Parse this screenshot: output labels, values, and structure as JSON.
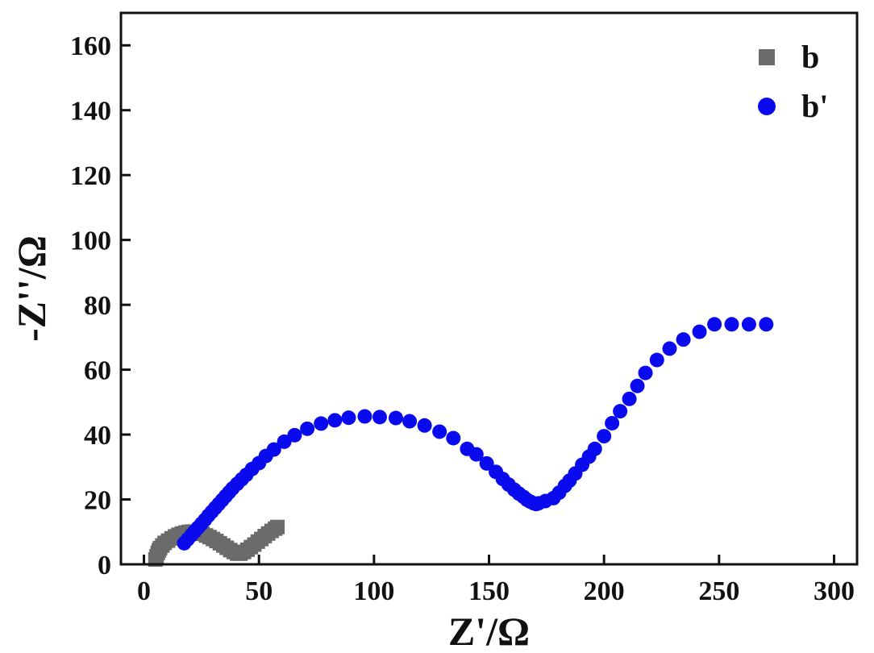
{
  "chart_data": {
    "type": "scatter",
    "xlabel": "Z'/Ω",
    "ylabel": "-Z''/Ω",
    "xlim": [
      -10,
      310
    ],
    "ylim": [
      0,
      170
    ],
    "xticks": [
      0,
      50,
      100,
      150,
      200,
      250,
      300
    ],
    "yticks": [
      0,
      20,
      40,
      60,
      80,
      100,
      120,
      140,
      160
    ],
    "grid": false,
    "legend_position": "top-right",
    "series": [
      {
        "name": "b",
        "marker": "square",
        "color": "#6b6b6b",
        "x": [
          5.0,
          5.5,
          6.0,
          6.5,
          7.0,
          8.0,
          9.0,
          10.5,
          12.0,
          13.5,
          15.0,
          16.5,
          18.0,
          19.5,
          21.0,
          22.5,
          24.0,
          25.5,
          27.0,
          28.5,
          30.0,
          31.5,
          33.0,
          34.5,
          36.0,
          37.5,
          39.0,
          40.5,
          42.0,
          43.5,
          45.0,
          46.5,
          48.0,
          49.5,
          51.0,
          52.5,
          54.0,
          55.5,
          57.0,
          58.0
        ],
        "y": [
          1.5,
          2.5,
          3.5,
          4.3,
          5.0,
          5.8,
          6.6,
          7.3,
          8.0,
          8.6,
          9.1,
          9.5,
          9.8,
          10.0,
          10.1,
          10.0,
          9.8,
          9.4,
          8.9,
          8.4,
          7.8,
          7.2,
          6.5,
          5.8,
          5.1,
          4.4,
          3.8,
          3.3,
          3.3,
          3.8,
          4.5,
          5.3,
          6.1,
          7.0,
          7.8,
          8.7,
          9.5,
          10.3,
          11.0,
          11.5
        ]
      },
      {
        "name": "b'",
        "marker": "circle",
        "color": "#0a0aee",
        "x": [
          17.5,
          19.0,
          20.5,
          22.0,
          23.5,
          25.0,
          26.5,
          28.0,
          29.5,
          31.0,
          32.5,
          34.0,
          35.5,
          37.0,
          38.5,
          40.5,
          42.5,
          44.5,
          47.0,
          50.0,
          53.0,
          56.5,
          61.0,
          65.5,
          71.0,
          77.0,
          83.0,
          89.0,
          96.0,
          102.5,
          109.5,
          115.5,
          122.0,
          128.5,
          134.5,
          140.5,
          144.5,
          149.0,
          153.0,
          156.0,
          158.5,
          161.0,
          163.0,
          165.0,
          166.5,
          168.0,
          169.5,
          170.5,
          171.5,
          174.5,
          178.0,
          180.5,
          183.0,
          185.0,
          187.5,
          190.5,
          193.5,
          196.0,
          200.0,
          203.5,
          207.0,
          211.0,
          214.5,
          218.0,
          223.0,
          228.5,
          234.5,
          241.5,
          248.0,
          255.5,
          263.0,
          270.5
        ],
        "y": [
          6.5,
          7.7,
          8.9,
          10.1,
          11.3,
          12.5,
          13.7,
          15.0,
          16.2,
          17.4,
          18.6,
          19.8,
          21.0,
          22.2,
          23.4,
          24.8,
          26.2,
          27.6,
          29.4,
          31.2,
          33.4,
          35.4,
          37.8,
          39.8,
          41.8,
          43.4,
          44.4,
          45.2,
          45.6,
          45.4,
          45.1,
          44.1,
          42.8,
          40.9,
          38.9,
          35.6,
          33.9,
          31.1,
          28.5,
          26.3,
          24.6,
          23.0,
          21.8,
          20.8,
          19.9,
          19.3,
          18.8,
          18.6,
          18.8,
          19.5,
          20.4,
          22.1,
          24.2,
          25.8,
          28.0,
          30.7,
          33.2,
          35.6,
          39.5,
          43.5,
          47.2,
          51.0,
          55.0,
          59.0,
          63.0,
          66.5,
          69.3,
          71.7,
          74.0,
          74.0,
          74.0,
          74.0
        ]
      }
    ]
  }
}
